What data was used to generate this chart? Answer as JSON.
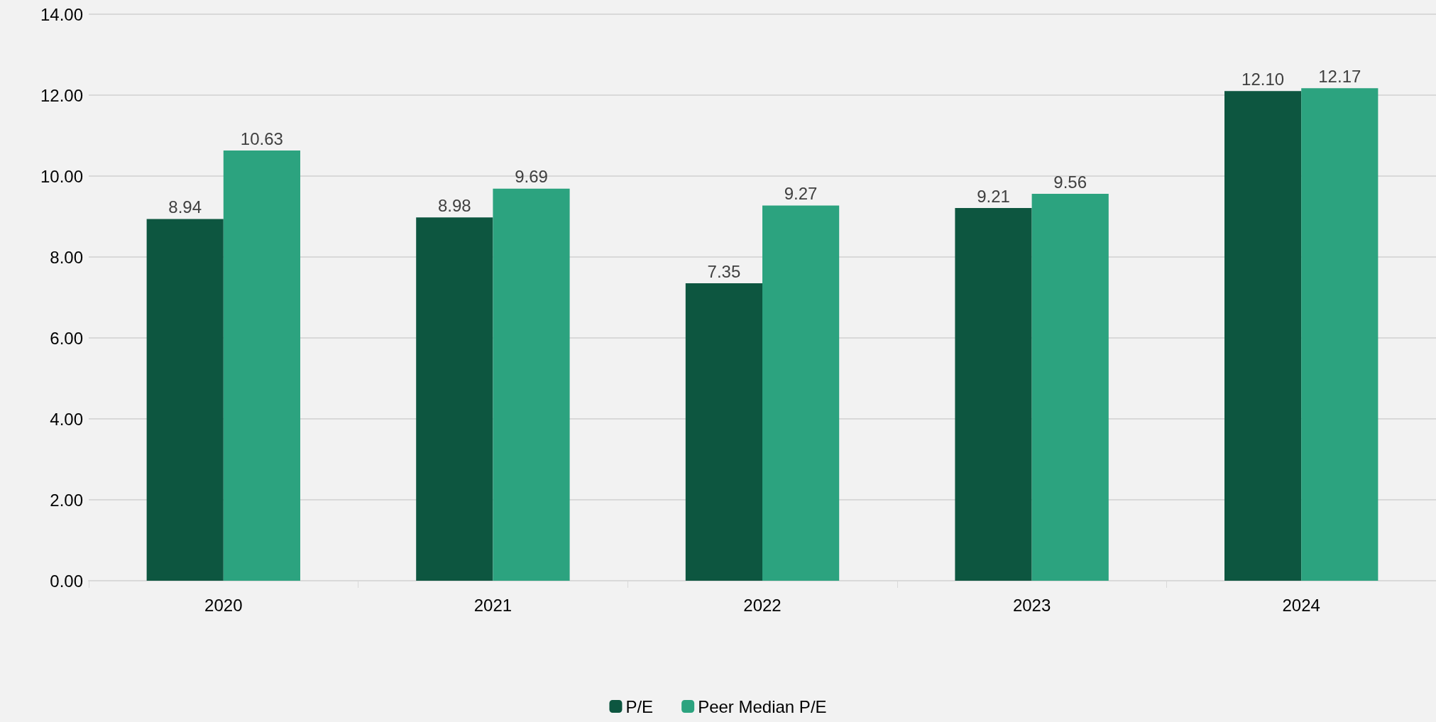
{
  "chart_data": {
    "type": "bar",
    "categories": [
      "2020",
      "2021",
      "2022",
      "2023",
      "2024"
    ],
    "series": [
      {
        "name": "P/E",
        "color": "#0d5640",
        "values": [
          8.94,
          8.98,
          7.35,
          9.21,
          12.1
        ],
        "value_labels": [
          "8.94",
          "8.98",
          "7.35",
          "9.21",
          "12.10"
        ]
      },
      {
        "name": "Peer Median P/E",
        "color": "#2ca37f",
        "values": [
          10.63,
          9.69,
          9.27,
          9.56,
          12.17
        ],
        "value_labels": [
          "10.63",
          "9.69",
          "9.27",
          "9.56",
          "12.17"
        ]
      }
    ],
    "ylim": [
      0,
      14
    ],
    "yticks": [
      {
        "value": 0,
        "label": "0.00"
      },
      {
        "value": 2,
        "label": "2.00"
      },
      {
        "value": 4,
        "label": "4.00"
      },
      {
        "value": 6,
        "label": "6.00"
      },
      {
        "value": 8,
        "label": "8.00"
      },
      {
        "value": 10,
        "label": "10.00"
      },
      {
        "value": 12,
        "label": "12.00"
      },
      {
        "value": 14,
        "label": "14.00"
      }
    ],
    "grid": "y",
    "legend": "bottom"
  }
}
